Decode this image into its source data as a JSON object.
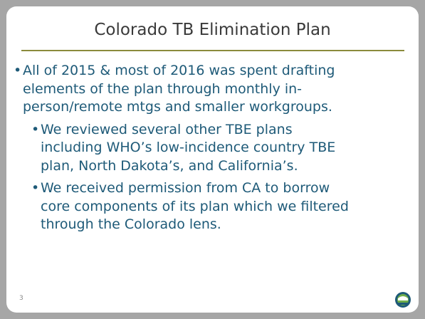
{
  "slide": {
    "title": "Colorado TB Elimination Plan",
    "bullets": [
      {
        "level": 1,
        "lines": [
          "All of 2015 & most of 2016 was spent drafting",
          "elements of the plan through monthly in-",
          "person/remote mtgs and smaller workgroups."
        ]
      },
      {
        "level": 2,
        "lines": [
          "We reviewed several other TBE plans",
          "including WHO’s low-incidence country TBE",
          "plan, North Dakota’s, and California’s."
        ]
      },
      {
        "level": 2,
        "lines": [
          "We received permission from CA to borrow",
          "core components of its plan which we filtered",
          "through the Colorado lens."
        ]
      }
    ],
    "page_number": "3"
  }
}
